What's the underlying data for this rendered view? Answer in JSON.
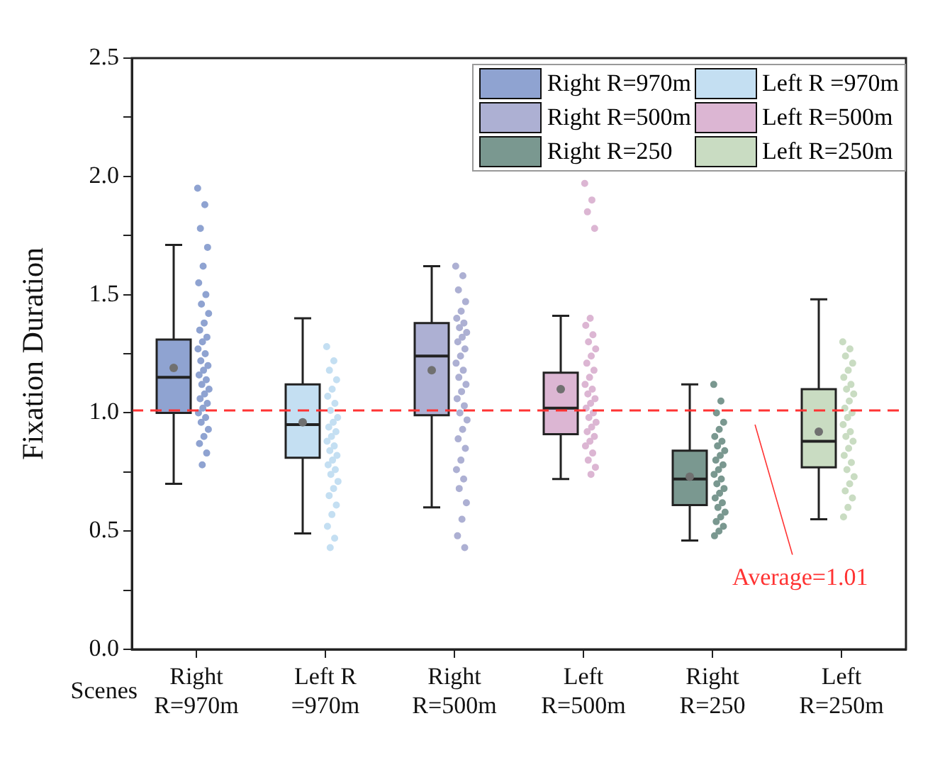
{
  "chart_data": {
    "type": "box",
    "ylabel": "Fixation Duration",
    "xlabel": "Scenes",
    "categories": [
      "Right\nR=970m",
      "Left R\n=970m",
      "Right\nR=500m",
      "Left\nR=500m",
      "Right\nR=250",
      "Left\nR=250m"
    ],
    "ylim": [
      0,
      2.5
    ],
    "yticks": [
      {
        "value": 0,
        "label": "0.0"
      },
      {
        "value": 0.25,
        "label": null
      },
      {
        "value": 0.5,
        "label": "0.5"
      },
      {
        "value": 0.75,
        "label": null
      },
      {
        "value": 1,
        "label": "1.0"
      },
      {
        "value": 1.25,
        "label": null
      },
      {
        "value": 1.5,
        "label": "1.5"
      },
      {
        "value": 1.75,
        "label": null
      },
      {
        "value": 2,
        "label": "2.0"
      },
      {
        "value": 2.25,
        "label": null
      },
      {
        "value": 2.5,
        "label": "2.5"
      }
    ],
    "grid": false,
    "legend": "top right",
    "ref_lines": [
      {
        "axis": "y",
        "value": 1.01,
        "label": "Average=1.01",
        "color": "#ff3333",
        "line_style": "dashed"
      }
    ],
    "series": [
      {
        "name": "Right R=970m",
        "color": "#8fa3d1",
        "boxes": [
          {
            "low": 0.7,
            "q1": 1.0,
            "median": 1.15,
            "q3": 1.31,
            "high": 1.71,
            "mean": 1.19
          },
          null,
          null,
          null,
          null,
          null
        ]
      },
      {
        "name": "Left R =970m",
        "color": "#c4dff2",
        "boxes": [
          null,
          {
            "low": 0.49,
            "q1": 0.81,
            "median": 0.95,
            "q3": 1.12,
            "high": 1.4,
            "mean": 0.96
          },
          null,
          null,
          null,
          null
        ]
      },
      {
        "name": "Right R=500m",
        "color": "#adb0d3",
        "boxes": [
          null,
          null,
          {
            "low": 0.6,
            "q1": 0.99,
            "median": 1.24,
            "q3": 1.38,
            "high": 1.62,
            "mean": 1.18
          },
          null,
          null,
          null
        ]
      },
      {
        "name": "Left R=500m",
        "color": "#dcb6d3",
        "boxes": [
          null,
          null,
          null,
          {
            "low": 0.72,
            "q1": 0.91,
            "median": 1.02,
            "q3": 1.17,
            "high": 1.41,
            "mean": 1.1
          },
          null,
          null
        ]
      },
      {
        "name": "Right R=250",
        "color": "#7a9890",
        "boxes": [
          null,
          null,
          null,
          null,
          {
            "low": 0.46,
            "q1": 0.61,
            "median": 0.72,
            "q3": 0.84,
            "high": 1.12,
            "mean": 0.73
          },
          null
        ]
      },
      {
        "name": "Left R=250m",
        "color": "#c9dcc2",
        "boxes": [
          null,
          null,
          null,
          null,
          null,
          {
            "low": 0.55,
            "q1": 0.77,
            "median": 0.88,
            "q3": 1.1,
            "high": 1.48,
            "mean": 0.92
          }
        ]
      },
      {
        "type": "scatter",
        "color": "#8fa3d1",
        "x": [
          "Right\nR=970m",
          "Right\nR=970m",
          "Right\nR=970m",
          "Right\nR=970m",
          "Right\nR=970m",
          "Right\nR=970m",
          "Right\nR=970m",
          "Right\nR=970m",
          "Right\nR=970m",
          "Right\nR=970m",
          "Right\nR=970m",
          "Right\nR=970m",
          "Right\nR=970m",
          "Right\nR=970m",
          "Right\nR=970m",
          "Right\nR=970m",
          "Right\nR=970m",
          "Right\nR=970m",
          "Right\nR=970m",
          "Right\nR=970m",
          "Right\nR=970m",
          "Right\nR=970m",
          "Right\nR=970m",
          "Right\nR=970m",
          "Right\nR=970m",
          "Right\nR=970m",
          "Right\nR=970m",
          "Right\nR=970m",
          "Right\nR=970m",
          "Right\nR=970m",
          "Right\nR=970m",
          "Right\nR=970m",
          "Right\nR=970m",
          "Right\nR=970m"
        ],
        "values": [
          1.95,
          1.88,
          1.78,
          1.7,
          1.62,
          1.55,
          1.5,
          1.46,
          1.42,
          1.38,
          1.35,
          1.32,
          1.3,
          1.27,
          1.25,
          1.22,
          1.2,
          1.18,
          1.16,
          1.14,
          1.12,
          1.1,
          1.08,
          1.06,
          1.04,
          1.02,
          1.0,
          0.98,
          0.96,
          0.93,
          0.9,
          0.87,
          0.83,
          0.78
        ]
      },
      {
        "type": "scatter",
        "color": "#c4dff2",
        "x": [
          "Left R\n=970m",
          "Left R\n=970m",
          "Left R\n=970m",
          "Left R\n=970m",
          "Left R\n=970m",
          "Left R\n=970m",
          "Left R\n=970m",
          "Left R\n=970m",
          "Left R\n=970m",
          "Left R\n=970m",
          "Left R\n=970m",
          "Left R\n=970m",
          "Left R\n=970m",
          "Left R\n=970m",
          "Left R\n=970m",
          "Left R\n=970m",
          "Left R\n=970m",
          "Left R\n=970m",
          "Left R\n=970m",
          "Left R\n=970m",
          "Left R\n=970m",
          "Left R\n=970m",
          "Left R\n=970m",
          "Left R\n=970m",
          "Left R\n=970m",
          "Left R\n=970m",
          "Left R\n=970m",
          "Left R\n=970m",
          "Left R\n=970m"
        ],
        "values": [
          1.28,
          1.22,
          1.18,
          1.14,
          1.1,
          1.07,
          1.04,
          1.01,
          0.98,
          0.96,
          0.94,
          0.92,
          0.9,
          0.88,
          0.86,
          0.84,
          0.82,
          0.8,
          0.78,
          0.76,
          0.74,
          0.71,
          0.68,
          0.65,
          0.61,
          0.57,
          0.52,
          0.47,
          0.43
        ]
      },
      {
        "type": "scatter",
        "color": "#adb0d3",
        "x": [
          "Right\nR=500m",
          "Right\nR=500m",
          "Right\nR=500m",
          "Right\nR=500m",
          "Right\nR=500m",
          "Right\nR=500m",
          "Right\nR=500m",
          "Right\nR=500m",
          "Right\nR=500m",
          "Right\nR=500m",
          "Right\nR=500m",
          "Right\nR=500m",
          "Right\nR=500m",
          "Right\nR=500m",
          "Right\nR=500m",
          "Right\nR=500m",
          "Right\nR=500m",
          "Right\nR=500m",
          "Right\nR=500m",
          "Right\nR=500m",
          "Right\nR=500m",
          "Right\nR=500m",
          "Right\nR=500m",
          "Right\nR=500m",
          "Right\nR=500m",
          "Right\nR=500m",
          "Right\nR=500m",
          "Right\nR=500m",
          "Right\nR=500m",
          "Right\nR=500m",
          "Right\nR=500m",
          "Right\nR=500m",
          "Right\nR=500m"
        ],
        "values": [
          1.62,
          1.58,
          1.52,
          1.47,
          1.43,
          1.4,
          1.38,
          1.36,
          1.34,
          1.32,
          1.3,
          1.27,
          1.24,
          1.21,
          1.18,
          1.15,
          1.12,
          1.09,
          1.06,
          1.03,
          1.0,
          0.97,
          0.93,
          0.89,
          0.85,
          0.8,
          0.76,
          0.72,
          0.68,
          0.62,
          0.55,
          0.48,
          0.43
        ]
      },
      {
        "type": "scatter",
        "color": "#dcb6d3",
        "x": [
          "Left\nR=500m",
          "Left\nR=500m",
          "Left\nR=500m",
          "Left\nR=500m",
          "Left\nR=500m",
          "Left\nR=500m",
          "Left\nR=500m",
          "Left\nR=500m",
          "Left\nR=500m",
          "Left\nR=500m",
          "Left\nR=500m",
          "Left\nR=500m",
          "Left\nR=500m",
          "Left\nR=500m",
          "Left\nR=500m",
          "Left\nR=500m",
          "Left\nR=500m",
          "Left\nR=500m",
          "Left\nR=500m",
          "Left\nR=500m",
          "Left\nR=500m",
          "Left\nR=500m",
          "Left\nR=500m",
          "Left\nR=500m",
          "Left\nR=500m",
          "Left\nR=500m",
          "Left\nR=500m",
          "Left\nR=500m",
          "Left\nR=500m",
          "Left\nR=500m",
          "Left\nR=500m"
        ],
        "values": [
          1.97,
          1.9,
          1.85,
          1.78,
          1.4,
          1.37,
          1.33,
          1.3,
          1.27,
          1.24,
          1.21,
          1.18,
          1.15,
          1.12,
          1.1,
          1.08,
          1.06,
          1.04,
          1.02,
          1.0,
          0.98,
          0.96,
          0.94,
          0.92,
          0.9,
          0.88,
          0.86,
          0.83,
          0.8,
          0.77,
          0.74
        ]
      },
      {
        "type": "scatter",
        "color": "#7a9890",
        "x": [
          "Right\nR=250",
          "Right\nR=250",
          "Right\nR=250",
          "Right\nR=250",
          "Right\nR=250",
          "Right\nR=250",
          "Right\nR=250",
          "Right\nR=250",
          "Right\nR=250",
          "Right\nR=250",
          "Right\nR=250",
          "Right\nR=250",
          "Right\nR=250",
          "Right\nR=250",
          "Right\nR=250",
          "Right\nR=250",
          "Right\nR=250",
          "Right\nR=250",
          "Right\nR=250",
          "Right\nR=250",
          "Right\nR=250",
          "Right\nR=250",
          "Right\nR=250",
          "Right\nR=250",
          "Right\nR=250",
          "Right\nR=250",
          "Right\nR=250"
        ],
        "values": [
          1.12,
          1.05,
          1.0,
          0.96,
          0.93,
          0.9,
          0.88,
          0.86,
          0.84,
          0.82,
          0.8,
          0.78,
          0.76,
          0.74,
          0.72,
          0.7,
          0.68,
          0.66,
          0.64,
          0.62,
          0.6,
          0.58,
          0.56,
          0.54,
          0.52,
          0.5,
          0.48
        ]
      },
      {
        "type": "scatter",
        "color": "#c9dcc2",
        "x": [
          "Left\nR=250m",
          "Left\nR=250m",
          "Left\nR=250m",
          "Left\nR=250m",
          "Left\nR=250m",
          "Left\nR=250m",
          "Left\nR=250m",
          "Left\nR=250m",
          "Left\nR=250m",
          "Left\nR=250m",
          "Left\nR=250m",
          "Left\nR=250m",
          "Left\nR=250m",
          "Left\nR=250m",
          "Left\nR=250m",
          "Left\nR=250m",
          "Left\nR=250m",
          "Left\nR=250m",
          "Left\nR=250m",
          "Left\nR=250m",
          "Left\nR=250m",
          "Left\nR=250m",
          "Left\nR=250m",
          "Left\nR=250m",
          "Left\nR=250m",
          "Left\nR=250m",
          "Left\nR=250m"
        ],
        "values": [
          1.3,
          1.27,
          1.24,
          1.21,
          1.18,
          1.15,
          1.12,
          1.1,
          1.08,
          1.05,
          1.02,
          1.0,
          0.98,
          0.95,
          0.92,
          0.9,
          0.88,
          0.85,
          0.82,
          0.79,
          0.76,
          0.73,
          0.7,
          0.67,
          0.64,
          0.6,
          0.56
        ]
      }
    ]
  }
}
